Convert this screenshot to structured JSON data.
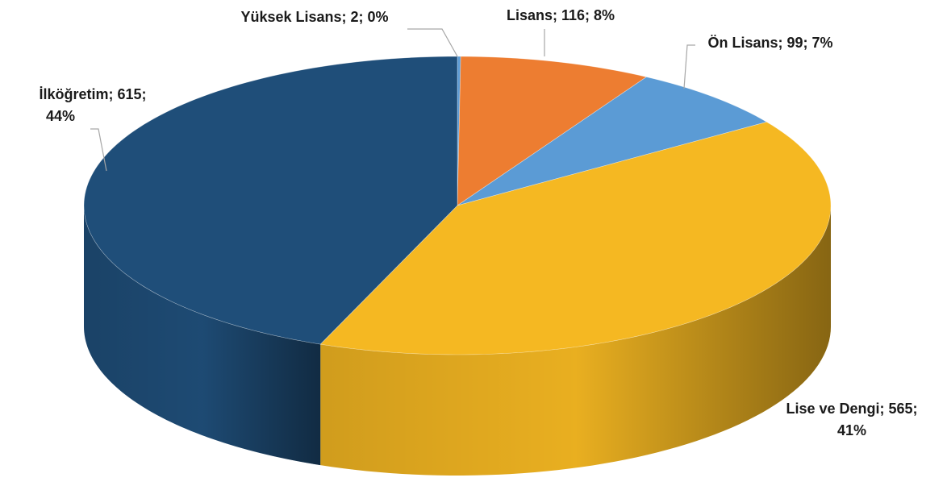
{
  "chart_data": {
    "type": "pie3d",
    "values": [
      2,
      116,
      99,
      565,
      615
    ],
    "value_labels": [
      "Yüksek Lisans; 2; 0%",
      "Lisans; 116; 8%",
      "Ön Lisans; 99; 7%",
      "Lise ve Dengi; 565; 41%",
      "İlköğretim; 615; 44%"
    ],
    "colors": [
      "#5b9bd5",
      "#ed7d31",
      "#5b9bd5",
      "#f5b822",
      "#1f4e79"
    ]
  }
}
